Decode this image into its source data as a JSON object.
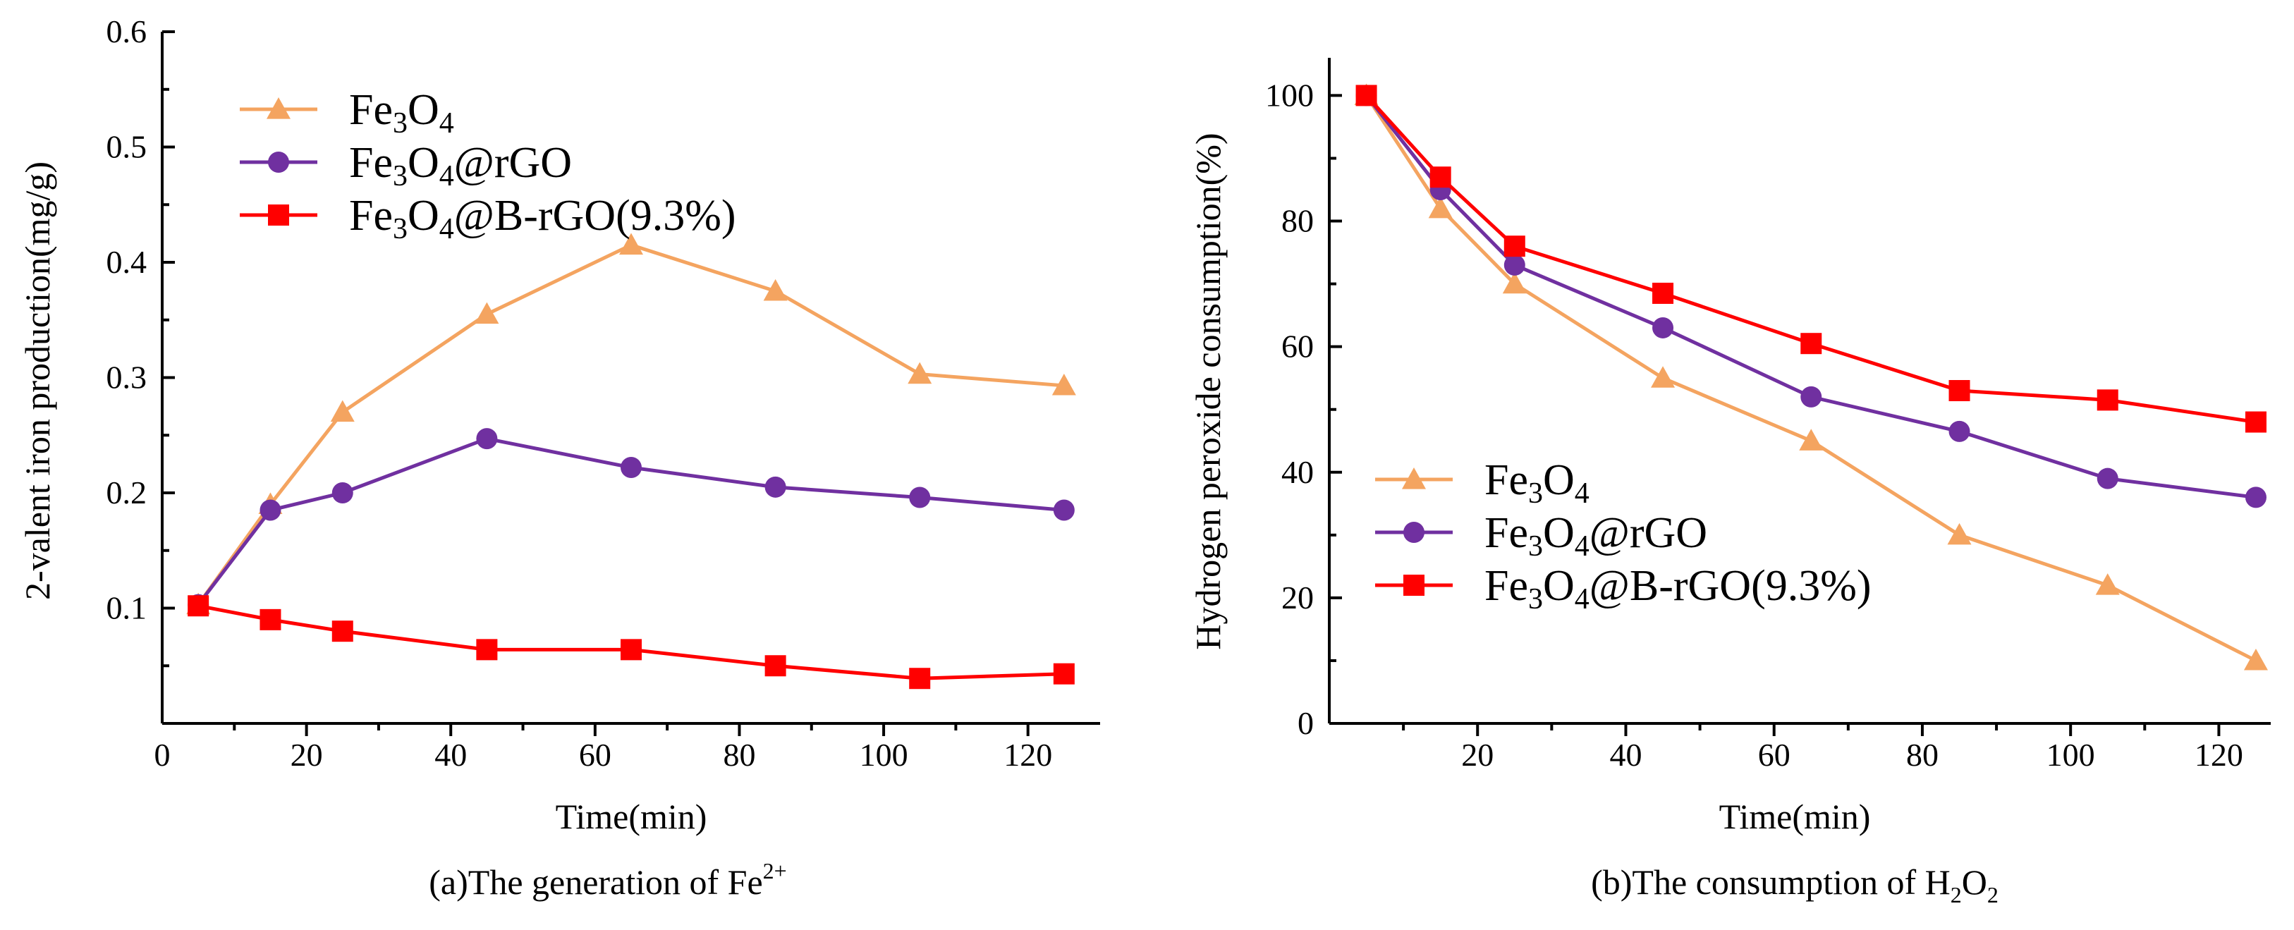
{
  "chart_data": [
    {
      "type": "line",
      "caption": "(a)The generation of Fe",
      "caption_sup": "2+",
      "xlabel": "Time(min)",
      "ylabel": "2-valent iron production(mg/g)",
      "xlim": [
        0,
        130
      ],
      "ylim": [
        0,
        0.6
      ],
      "xticks": [
        0,
        20,
        40,
        60,
        80,
        100,
        120
      ],
      "xtick_labels": [
        "0",
        "20",
        "40",
        "60",
        "80",
        "100",
        "120"
      ],
      "yticks": [
        0.1,
        0.2,
        0.3,
        0.4,
        0.5,
        0.6
      ],
      "ytick_labels": [
        "0.1",
        "0.2",
        "0.3",
        "0.4",
        "0.5",
        "0.6"
      ],
      "legend_position": "top-left",
      "series": [
        {
          "name": "Fe3O4",
          "label_parts": [
            "Fe",
            "3",
            "O",
            "4",
            ""
          ],
          "color": "#F4A460",
          "marker": "triangle",
          "x": [
            5,
            15,
            25,
            45,
            65,
            85,
            105,
            125
          ],
          "y": [
            0.103,
            0.19,
            0.27,
            0.355,
            0.415,
            0.375,
            0.303,
            0.293
          ]
        },
        {
          "name": "Fe3O4@rGO",
          "label_parts": [
            "Fe",
            "3",
            "O",
            "4",
            "@rGO"
          ],
          "color": "#7030A0",
          "marker": "circle",
          "x": [
            5,
            15,
            25,
            45,
            65,
            85,
            105,
            125
          ],
          "y": [
            0.103,
            0.185,
            0.2,
            0.247,
            0.222,
            0.205,
            0.196,
            0.185
          ]
        },
        {
          "name": "Fe3O4@B-rGO(9.3%)",
          "label_parts": [
            "Fe",
            "3",
            "O",
            "4",
            "@B-rGO(9.3%)"
          ],
          "color": "#FF0000",
          "marker": "square",
          "x": [
            5,
            15,
            25,
            45,
            65,
            85,
            105,
            125
          ],
          "y": [
            0.102,
            0.09,
            0.08,
            0.064,
            0.064,
            0.05,
            0.039,
            0.043
          ]
        }
      ]
    },
    {
      "type": "line",
      "caption": "(b)The consumption of  H",
      "caption_sub1": "2",
      "caption_mid": "O",
      "caption_sub2": "2",
      "xlabel": "Time(min)",
      "ylabel": "Hydrogen peroxide consumption(%)",
      "xlim": [
        0,
        127
      ],
      "ylim": [
        0,
        106
      ],
      "xticks": [
        20,
        40,
        60,
        80,
        100,
        120
      ],
      "xtick_labels": [
        "20",
        "40",
        "60",
        "80",
        "100",
        "120"
      ],
      "yticks": [
        0,
        20,
        40,
        60,
        80,
        100
      ],
      "ytick_labels": [
        "0",
        "20",
        "40",
        "60",
        "80",
        "100"
      ],
      "legend_position": "lower-left",
      "series": [
        {
          "name": "Fe3O4",
          "label_parts": [
            "Fe",
            "3",
            "O",
            "4",
            ""
          ],
          "color": "#F4A460",
          "marker": "triangle",
          "x": [
            5,
            15,
            25,
            45,
            65,
            85,
            105,
            125
          ],
          "y": [
            100,
            82,
            70,
            55,
            45,
            30,
            22,
            10
          ]
        },
        {
          "name": "Fe3O4@rGO",
          "label_parts": [
            "Fe",
            "3",
            "O",
            "4",
            "@rGO"
          ],
          "color": "#7030A0",
          "marker": "circle",
          "x": [
            5,
            15,
            25,
            45,
            65,
            85,
            105,
            125
          ],
          "y": [
            100,
            85,
            73,
            63,
            52,
            46.5,
            39,
            36
          ]
        },
        {
          "name": "Fe3O4@B-rGO(9.3%)",
          "label_parts": [
            "Fe",
            "3",
            "O",
            "4",
            "@B-rGO(9.3%)"
          ],
          "color": "#FF0000",
          "marker": "square",
          "x": [
            5,
            15,
            25,
            45,
            65,
            85,
            105,
            125
          ],
          "y": [
            100,
            87,
            76,
            68.5,
            60.5,
            53,
            51.5,
            48
          ]
        }
      ]
    }
  ]
}
